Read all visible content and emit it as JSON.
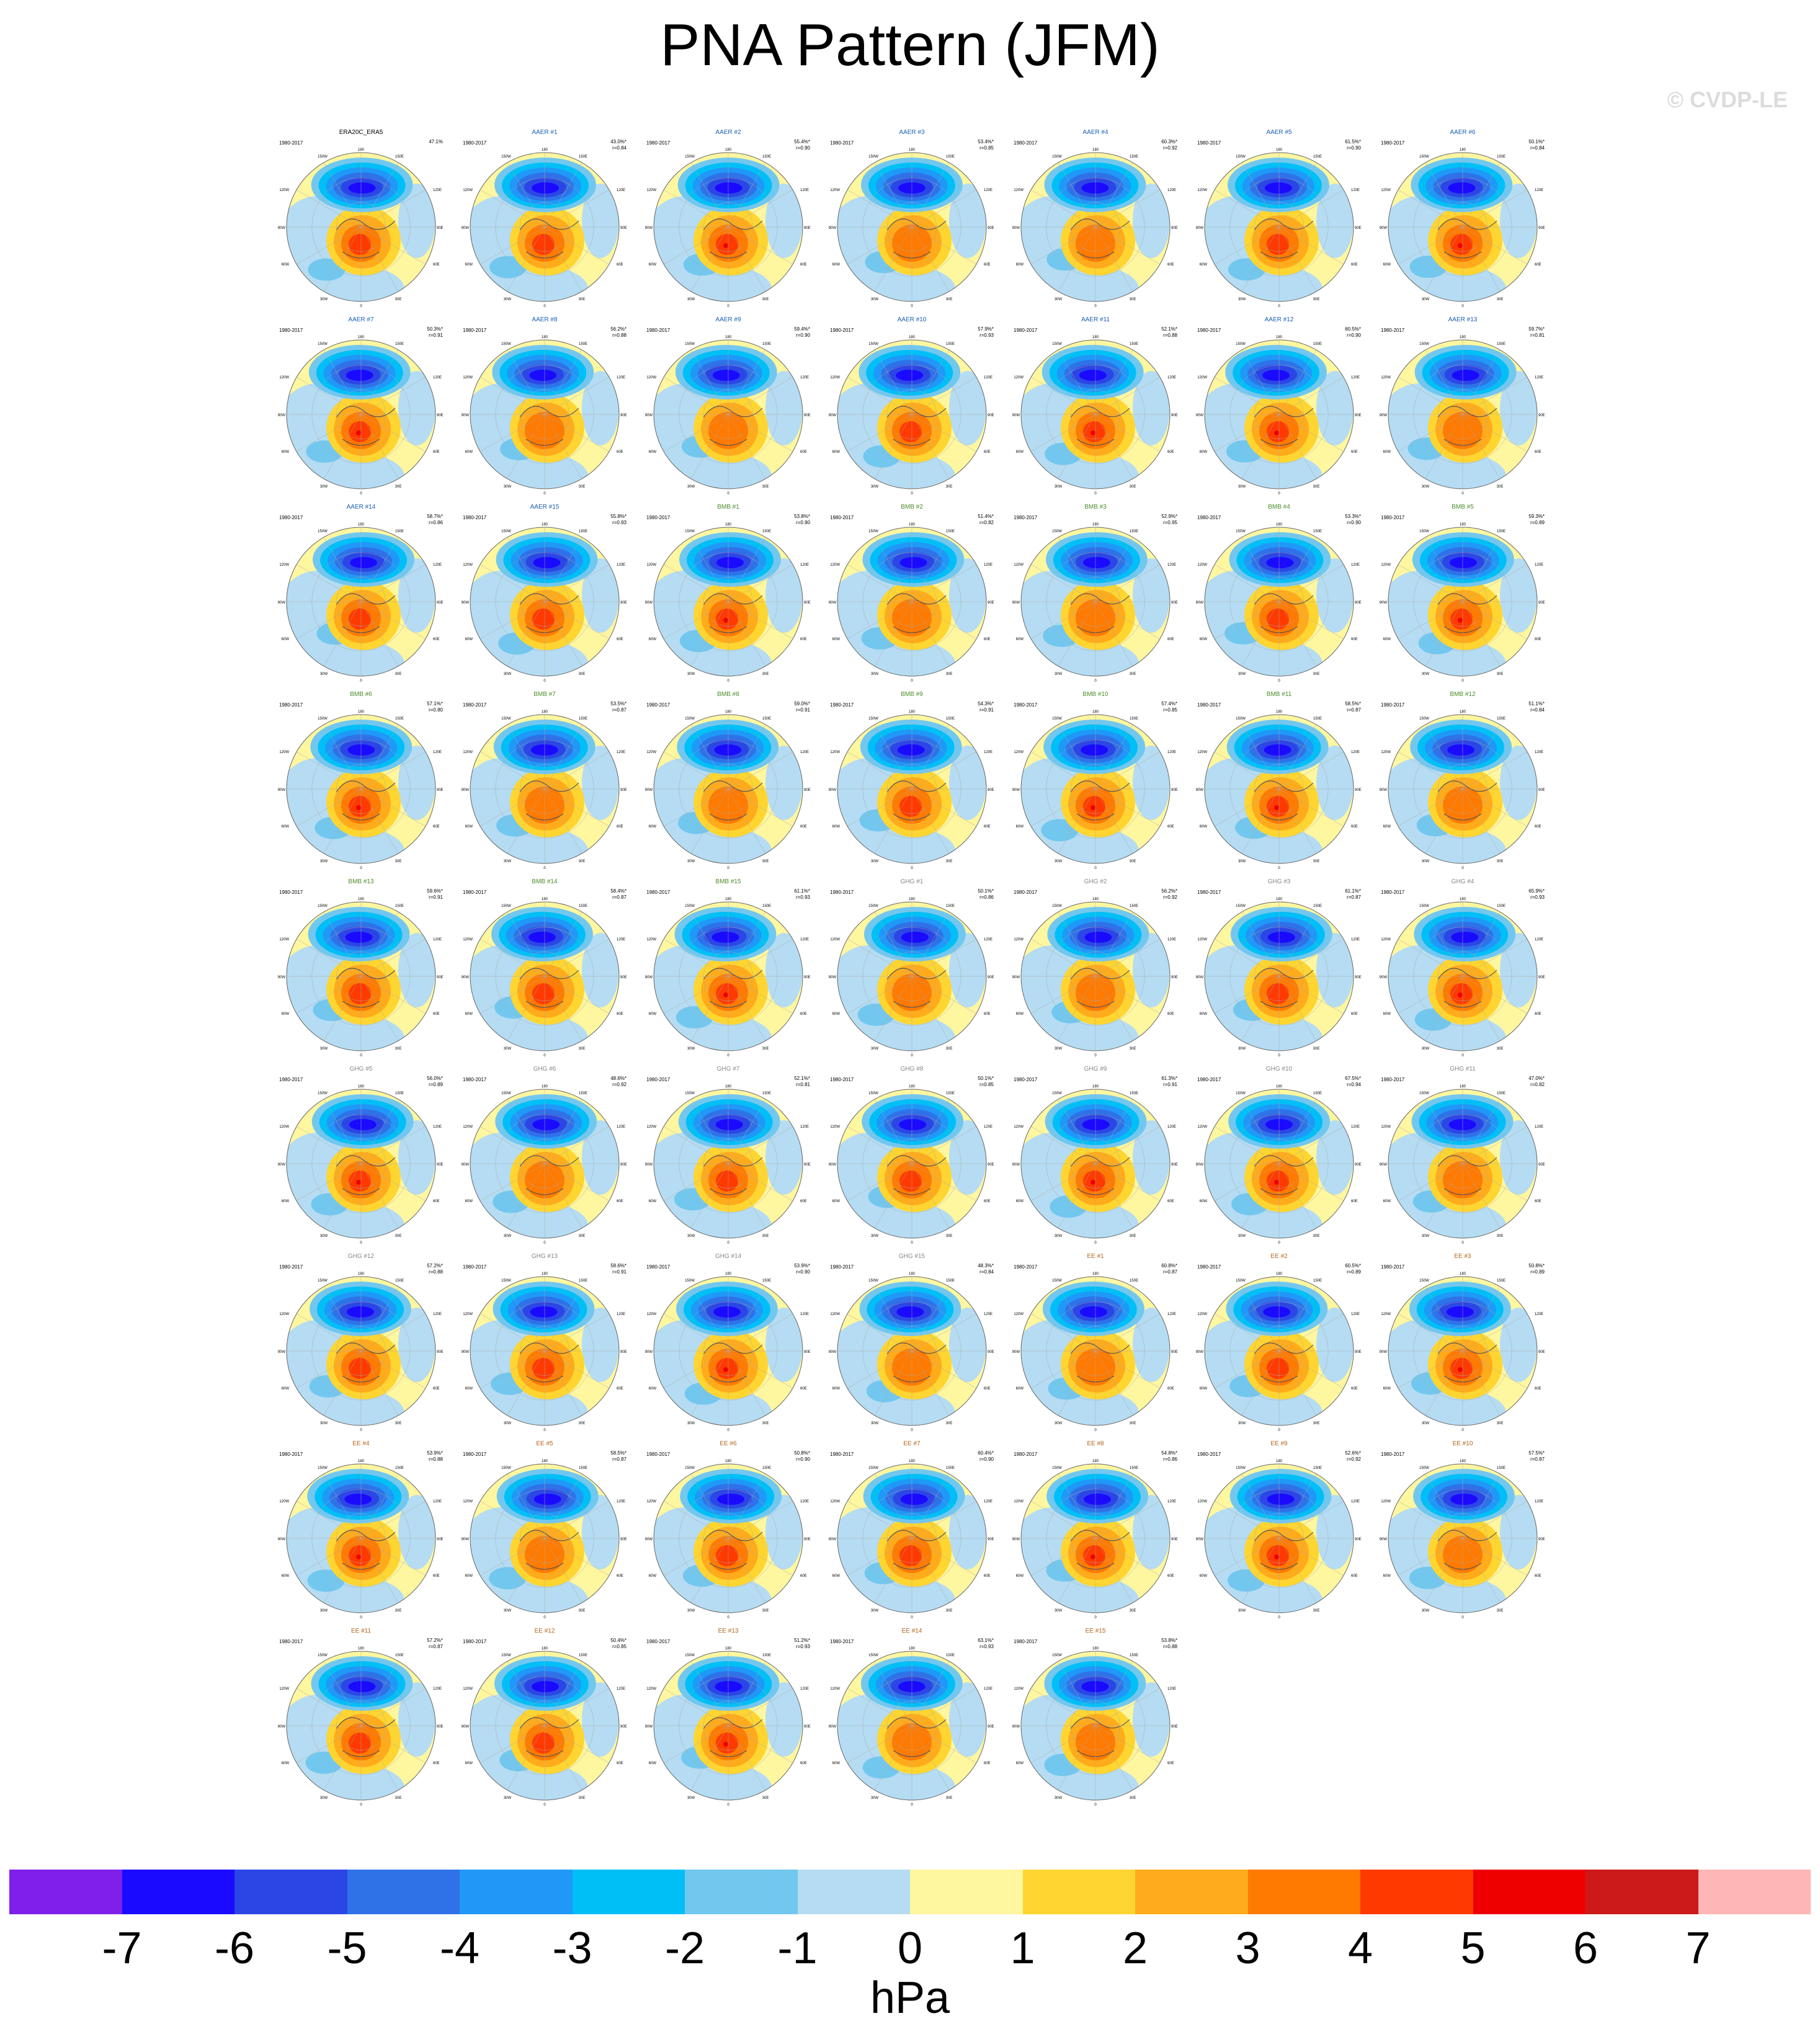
{
  "title": "PNA Pattern (JFM)",
  "copyright": "© CVDP-LE",
  "panel_years": "1980-2017",
  "panels": [
    {
      "label": "ERA20C_ERA5",
      "group": "obs",
      "pct": "47.1%",
      "r": ""
    },
    {
      "label": "AAER #1",
      "group": "AAER",
      "pct": "43.0%*",
      "r": "r=0.84"
    },
    {
      "label": "AAER #2",
      "group": "AAER",
      "pct": "55.4%*",
      "r": "r=0.90"
    },
    {
      "label": "AAER #3",
      "group": "AAER",
      "pct": "53.4%*",
      "r": "r=0.85"
    },
    {
      "label": "AAER #4",
      "group": "AAER",
      "pct": "60.3%*",
      "r": "r=0.92"
    },
    {
      "label": "AAER #5",
      "group": "AAER",
      "pct": "61.5%*",
      "r": "r=0.90"
    },
    {
      "label": "AAER #6",
      "group": "AAER",
      "pct": "50.1%*",
      "r": "r=0.84"
    },
    {
      "label": "AAER #7",
      "group": "AAER",
      "pct": "50.3%*",
      "r": "r=0.91"
    },
    {
      "label": "AAER #8",
      "group": "AAER",
      "pct": "56.2%*",
      "r": "r=0.88"
    },
    {
      "label": "AAER #9",
      "group": "AAER",
      "pct": "59.4%*",
      "r": "r=0.90"
    },
    {
      "label": "AAER #10",
      "group": "AAER",
      "pct": "57.9%*",
      "r": "r=0.93"
    },
    {
      "label": "AAER #11",
      "group": "AAER",
      "pct": "52.1%*",
      "r": "r=0.88"
    },
    {
      "label": "AAER #12",
      "group": "AAER",
      "pct": "60.5%*",
      "r": "r=0.90"
    },
    {
      "label": "AAER #13",
      "group": "AAER",
      "pct": "59.7%*",
      "r": "r=0.81"
    },
    {
      "label": "AAER #14",
      "group": "AAER",
      "pct": "58.7%*",
      "r": "r=0.86"
    },
    {
      "label": "AAER #15",
      "group": "AAER",
      "pct": "55.8%*",
      "r": "r=0.93"
    },
    {
      "label": "BMB #1",
      "group": "BMB",
      "pct": "53.8%*",
      "r": "r=0.90"
    },
    {
      "label": "BMB #2",
      "group": "BMB",
      "pct": "51.4%*",
      "r": "r=0.82"
    },
    {
      "label": "BMB #3",
      "group": "BMB",
      "pct": "52.9%*",
      "r": "r=0.95"
    },
    {
      "label": "BMB #4",
      "group": "BMB",
      "pct": "53.3%*",
      "r": "r=0.90"
    },
    {
      "label": "BMB #5",
      "group": "BMB",
      "pct": "59.3%*",
      "r": "r=0.89"
    },
    {
      "label": "BMB #6",
      "group": "BMB",
      "pct": "57.1%*",
      "r": "r=0.80"
    },
    {
      "label": "BMB #7",
      "group": "BMB",
      "pct": "53.5%*",
      "r": "r=0.87"
    },
    {
      "label": "BMB #8",
      "group": "BMB",
      "pct": "59.0%*",
      "r": "r=0.91"
    },
    {
      "label": "BMB #9",
      "group": "BMB",
      "pct": "54.3%*",
      "r": "r=0.91"
    },
    {
      "label": "BMB #10",
      "group": "BMB",
      "pct": "57.4%*",
      "r": "r=0.85"
    },
    {
      "label": "BMB #11",
      "group": "BMB",
      "pct": "58.5%*",
      "r": "r=0.87"
    },
    {
      "label": "BMB #12",
      "group": "BMB",
      "pct": "51.1%*",
      "r": "r=0.84"
    },
    {
      "label": "BMB #13",
      "group": "BMB",
      "pct": "59.6%*",
      "r": "r=0.91"
    },
    {
      "label": "BMB #14",
      "group": "BMB",
      "pct": "58.4%*",
      "r": "r=0.87"
    },
    {
      "label": "BMB #15",
      "group": "BMB",
      "pct": "61.1%*",
      "r": "r=0.93"
    },
    {
      "label": "GHG #1",
      "group": "GHG",
      "pct": "50.1%*",
      "r": "r=0.86"
    },
    {
      "label": "GHG #2",
      "group": "GHG",
      "pct": "56.2%*",
      "r": "r=0.92"
    },
    {
      "label": "GHG #3",
      "group": "GHG",
      "pct": "61.1%*",
      "r": "r=0.87"
    },
    {
      "label": "GHG #4",
      "group": "GHG",
      "pct": "65.9%*",
      "r": "r=0.93"
    },
    {
      "label": "GHG #5",
      "group": "GHG",
      "pct": "56.0%*",
      "r": "r=0.89"
    },
    {
      "label": "GHG #6",
      "group": "GHG",
      "pct": "48.6%*",
      "r": "r=0.92"
    },
    {
      "label": "GHG #7",
      "group": "GHG",
      "pct": "52.1%*",
      "r": "r=0.81"
    },
    {
      "label": "GHG #8",
      "group": "GHG",
      "pct": "50.1%*",
      "r": "r=0.85"
    },
    {
      "label": "GHG #9",
      "group": "GHG",
      "pct": "61.3%*",
      "r": "r=0.91"
    },
    {
      "label": "GHG #10",
      "group": "GHG",
      "pct": "67.5%*",
      "r": "r=0.94"
    },
    {
      "label": "GHG #11",
      "group": "GHG",
      "pct": "47.0%*",
      "r": "r=0.82"
    },
    {
      "label": "GHG #12",
      "group": "GHG",
      "pct": "57.2%*",
      "r": "r=0.88"
    },
    {
      "label": "GHG #13",
      "group": "GHG",
      "pct": "58.6%*",
      "r": "r=0.91"
    },
    {
      "label": "GHG #14",
      "group": "GHG",
      "pct": "53.9%*",
      "r": "r=0.90"
    },
    {
      "label": "GHG #15",
      "group": "GHG",
      "pct": "48.3%*",
      "r": "r=0.84"
    },
    {
      "label": "EE #1",
      "group": "EE",
      "pct": "60.8%*",
      "r": "r=0.87"
    },
    {
      "label": "EE #2",
      "group": "EE",
      "pct": "60.5%*",
      "r": "r=0.89"
    },
    {
      "label": "EE #3",
      "group": "EE",
      "pct": "50.8%*",
      "r": "r=0.89"
    },
    {
      "label": "EE #4",
      "group": "EE",
      "pct": "53.9%*",
      "r": "r=0.88"
    },
    {
      "label": "EE #5",
      "group": "EE",
      "pct": "58.5%*",
      "r": "r=0.87"
    },
    {
      "label": "EE #6",
      "group": "EE",
      "pct": "50.8%*",
      "r": "r=0.90"
    },
    {
      "label": "EE #7",
      "group": "EE",
      "pct": "60.4%*",
      "r": "r=0.90"
    },
    {
      "label": "EE #8",
      "group": "EE",
      "pct": "54.8%*",
      "r": "r=0.86"
    },
    {
      "label": "EE #9",
      "group": "EE",
      "pct": "52.6%*",
      "r": "r=0.92"
    },
    {
      "label": "EE #10",
      "group": "EE",
      "pct": "57.5%*",
      "r": "r=0.87"
    },
    {
      "label": "EE #11",
      "group": "EE",
      "pct": "57.2%*",
      "r": "r=0.87"
    },
    {
      "label": "EE #12",
      "group": "EE",
      "pct": "50.4%*",
      "r": "r=0.85"
    },
    {
      "label": "EE #13",
      "group": "EE",
      "pct": "51.2%*",
      "r": "r=0.93"
    },
    {
      "label": "EE #14",
      "group": "EE",
      "pct": "63.1%*",
      "r": "r=0.93"
    },
    {
      "label": "EE #15",
      "group": "EE",
      "pct": "53.8%*",
      "r": "r=0.88"
    }
  ],
  "label_colors": {
    "obs": "#000000",
    "AAER": "#1a5fb4",
    "BMB": "#4c8c2b",
    "GHG": "#888888",
    "EE": "#b5651d"
  },
  "map_labels": {
    "top": "180",
    "bottom": "0",
    "left": "90W",
    "right": "90E",
    "tl": "150W",
    "tr": "150E",
    "ul": "120W",
    "ur": "120E",
    "ll": "60W",
    "lr": "60E",
    "bl": "30W",
    "br": "30E"
  },
  "chart_data": {
    "type": "heatmap",
    "variable": "PNA Pattern (JFM)",
    "colorbar": {
      "units": "hPa",
      "ticks": [
        "-7",
        "-6",
        "-5",
        "-4",
        "-3",
        "-2",
        "-1",
        "0",
        "1",
        "2",
        "3",
        "4",
        "5",
        "6",
        "7"
      ],
      "colors": [
        "#7e1fea",
        "#1a0aff",
        "#2c46e6",
        "#2f72e8",
        "#1f98f8",
        "#00bff6",
        "#72c7ef",
        "#b5dcf2",
        "#fff6a0",
        "#ffd531",
        "#ffab1b",
        "#ff7a00",
        "#ff3a00",
        "#ee0000",
        "#cc1a1a",
        "#ffb6b6"
      ]
    }
  }
}
